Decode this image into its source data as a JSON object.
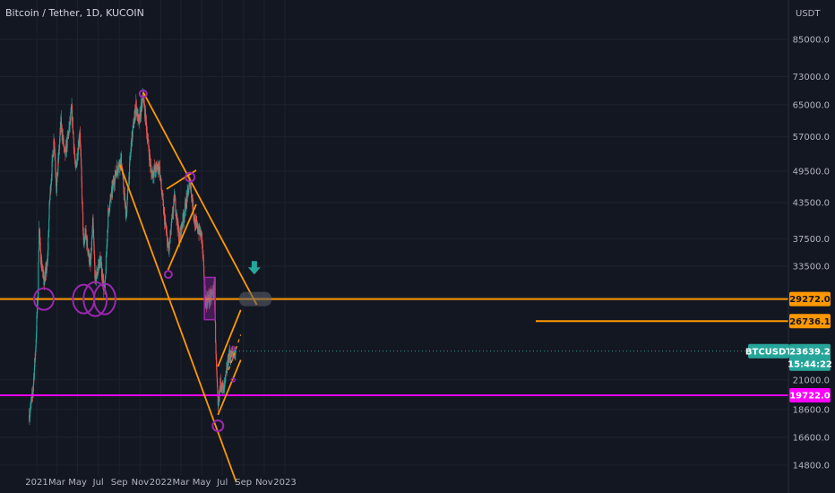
{
  "chart_data": {
    "type": "candlestick",
    "title": "Bitcoin / Tether, 1D, KUCOIN",
    "y_unit": "USDT",
    "y_scale": "log",
    "ylim": [
      14100,
      100000
    ],
    "x_ticks": [
      {
        "label": "2021",
        "date": "2021-01-01"
      },
      {
        "label": "Mar",
        "date": "2021-03-01"
      },
      {
        "label": "May",
        "date": "2021-05-01"
      },
      {
        "label": "Jul",
        "date": "2021-07-01"
      },
      {
        "label": "Sep",
        "date": "2021-09-01"
      },
      {
        "label": "Nov",
        "date": "2021-11-01"
      },
      {
        "label": "2022",
        "date": "2022-01-01"
      },
      {
        "label": "Mar",
        "date": "2022-03-01"
      },
      {
        "label": "May",
        "date": "2022-05-01"
      },
      {
        "label": "Jul",
        "date": "2022-07-01"
      },
      {
        "label": "Sep",
        "date": "2022-09-01"
      },
      {
        "label": "Nov",
        "date": "2022-11-01"
      },
      {
        "label": "2023",
        "date": "2023-01-01"
      }
    ],
    "y_ticks": [
      "85000.0",
      "73000.0",
      "65000.0",
      "57000.0",
      "49500.0",
      "43500.0",
      "37500.0",
      "33500.0",
      "29500.0",
      "21000.0",
      "18600.0",
      "16600.0",
      "14800.0"
    ],
    "price_points": [
      {
        "date": "2020-12-10",
        "close": 18200
      },
      {
        "date": "2020-12-20",
        "close": 19800
      },
      {
        "date": "2020-12-28",
        "close": 23500
      },
      {
        "date": "2021-01-05",
        "close": 30500
      },
      {
        "date": "2021-01-08",
        "close": 40000
      },
      {
        "date": "2021-01-12",
        "close": 35000
      },
      {
        "date": "2021-01-22",
        "close": 31500
      },
      {
        "date": "2021-02-01",
        "close": 33500
      },
      {
        "date": "2021-02-08",
        "close": 44000
      },
      {
        "date": "2021-02-21",
        "close": 57000
      },
      {
        "date": "2021-02-28",
        "close": 46000
      },
      {
        "date": "2021-03-13",
        "close": 60500
      },
      {
        "date": "2021-03-25",
        "close": 52500
      },
      {
        "date": "2021-04-14",
        "close": 63500
      },
      {
        "date": "2021-04-25",
        "close": 49500
      },
      {
        "date": "2021-05-08",
        "close": 58500
      },
      {
        "date": "2021-05-19",
        "close": 36000
      },
      {
        "date": "2021-05-24",
        "close": 38500
      },
      {
        "date": "2021-06-08",
        "close": 33500
      },
      {
        "date": "2021-06-15",
        "close": 40000
      },
      {
        "date": "2021-06-22",
        "close": 31500
      },
      {
        "date": "2021-07-06",
        "close": 34500
      },
      {
        "date": "2021-07-20",
        "close": 30000
      },
      {
        "date": "2021-07-30",
        "close": 41500
      },
      {
        "date": "2021-08-14",
        "close": 47000
      },
      {
        "date": "2021-08-23",
        "close": 49500
      },
      {
        "date": "2021-09-06",
        "close": 52000
      },
      {
        "date": "2021-09-21",
        "close": 41000
      },
      {
        "date": "2021-10-06",
        "close": 55500
      },
      {
        "date": "2021-10-20",
        "close": 65000
      },
      {
        "date": "2021-10-28",
        "close": 60000
      },
      {
        "date": "2021-11-10",
        "close": 67500
      },
      {
        "date": "2021-11-26",
        "close": 54500
      },
      {
        "date": "2021-12-04",
        "close": 49000
      },
      {
        "date": "2021-12-27",
        "close": 50500
      },
      {
        "date": "2022-01-10",
        "close": 41500
      },
      {
        "date": "2022-01-24",
        "close": 35500
      },
      {
        "date": "2022-02-10",
        "close": 44500
      },
      {
        "date": "2022-02-24",
        "close": 37500
      },
      {
        "date": "2022-03-10",
        "close": 41500
      },
      {
        "date": "2022-03-28",
        "close": 47500
      },
      {
        "date": "2022-04-11",
        "close": 40000
      },
      {
        "date": "2022-05-01",
        "close": 38000
      },
      {
        "date": "2022-05-12",
        "close": 29000
      },
      {
        "date": "2022-05-28",
        "close": 29500
      },
      {
        "date": "2022-06-07",
        "close": 30500
      },
      {
        "date": "2022-06-13",
        "close": 22500
      },
      {
        "date": "2022-06-18",
        "close": 18500
      },
      {
        "date": "2022-06-26",
        "close": 21000
      },
      {
        "date": "2022-07-05",
        "close": 20000
      },
      {
        "date": "2022-07-20",
        "close": 23200
      },
      {
        "date": "2022-08-01",
        "close": 23300
      },
      {
        "date": "2022-08-09",
        "close": 23639.2
      }
    ],
    "horizontal_levels": [
      {
        "value": 29272.0,
        "label": "29272.0",
        "color": "#ff9800"
      },
      {
        "value": 26736.1,
        "label": "26736.1",
        "color": "#ff9800"
      },
      {
        "value": 19722.0,
        "label": "19722.0",
        "color": "#ff00ff"
      }
    ],
    "current_price": {
      "symbol": "BTCUSDT",
      "value": "23639.2",
      "countdown": "15:44:22",
      "color": "#26a69a"
    },
    "annotations": {
      "trendline_color": "#ff9800",
      "circle_color": "#9c27b0",
      "box_color": "#9c27b0",
      "arrow_color": "#26a69a",
      "bull_color": "#26a69a",
      "bear_color": "#ef5350"
    }
  }
}
